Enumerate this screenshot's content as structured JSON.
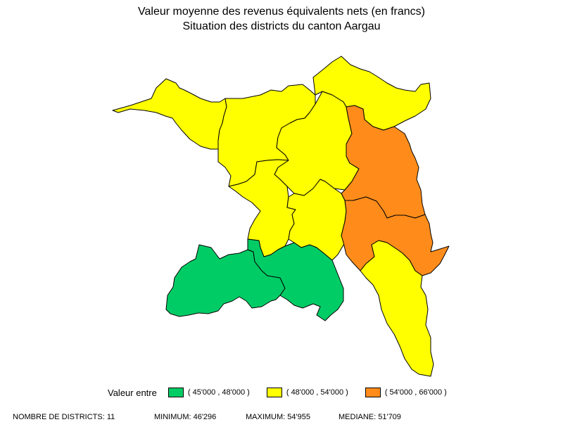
{
  "title": {
    "line1": "Valeur moyenne des revenus équivalents nets (en francs)",
    "line2": "Situation des districts du canton Aargau"
  },
  "legend": {
    "title": "Valeur entre",
    "items": [
      {
        "label": "( 45'000 , 48'000 )",
        "color": "#00cc66"
      },
      {
        "label": "( 48'000 , 54'000 )",
        "color": "#ffff00"
      },
      {
        "label": "( 54'000 , 66'000 )",
        "color": "#ff8c1a"
      }
    ]
  },
  "stats": {
    "districts": "NOMBRE DE DISTRICTS: 11",
    "minimum": "MINIMUM: 46'296",
    "maximum": "MAXIMUM: 54'955",
    "median": "MEDIANE: 51'709"
  },
  "map": {
    "district_classes": {
      "rheinfelden": 1,
      "laufenburg": 1,
      "zurzach": 1,
      "brugg": 1,
      "baden": 2,
      "aarau": 1,
      "lenzburg": 1,
      "bremgarten": 2,
      "muri": 1,
      "zofingen": 0,
      "kulm": 0
    }
  }
}
